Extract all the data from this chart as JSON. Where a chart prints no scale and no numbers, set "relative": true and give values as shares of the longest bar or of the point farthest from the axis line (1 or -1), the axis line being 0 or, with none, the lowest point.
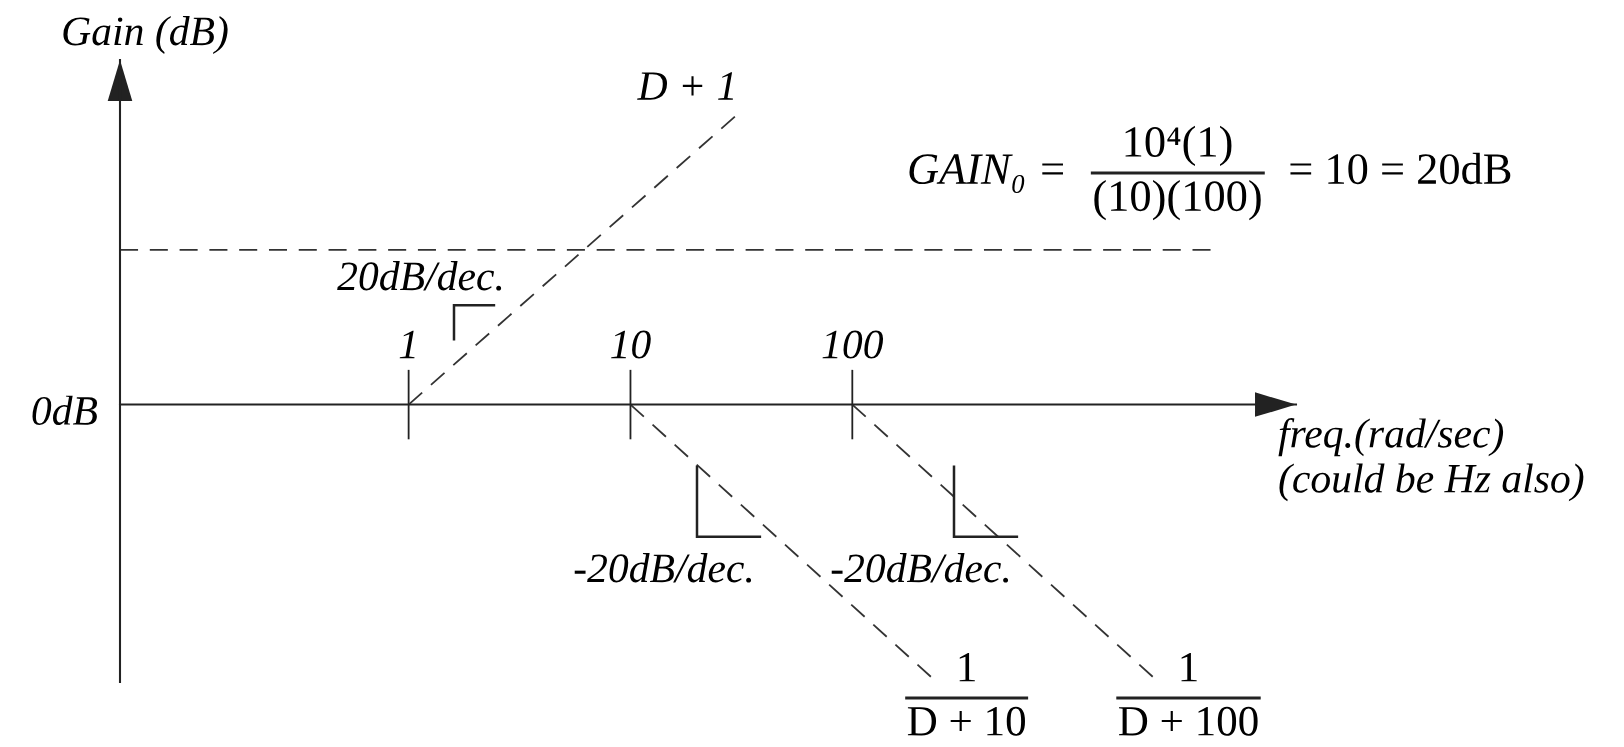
{
  "chart_data": {
    "type": "line",
    "relative": true,
    "log": "x",
    "xlim": [
      0.05,
      10000
    ],
    "xticks": [
      1,
      10,
      100
    ],
    "ylabel": "Gain (dB)",
    "xlabel": "freq.(rad/sec)\n(could be Hz also)",
    "line_style": "dashed",
    "series": [
      {
        "name": "D + 1",
        "color": "#333333",
        "x": [
          1,
          31
        ],
        "values": [
          0,
          1
        ]
      },
      {
        "color": "#333333",
        "x": [
          0.05,
          4200
        ],
        "values": [
          0.53,
          0.53
        ]
      },
      {
        "name": "1\nD + 10",
        "color": "#333333",
        "x": [
          10,
          240
        ],
        "values": [
          0,
          -0.95
        ]
      },
      {
        "name": "1\nD + 100",
        "color": "#333333",
        "x": [
          100,
          2400
        ],
        "values": [
          0,
          -0.95
        ]
      }
    ],
    "annotations": [
      "0dB",
      "GAIN₀ =",
      "10⁴(1)\n(10)(100)",
      "= 10 = 20dB",
      "20dB/dec.",
      "-20dB/dec.",
      "-20dB/dec."
    ]
  }
}
